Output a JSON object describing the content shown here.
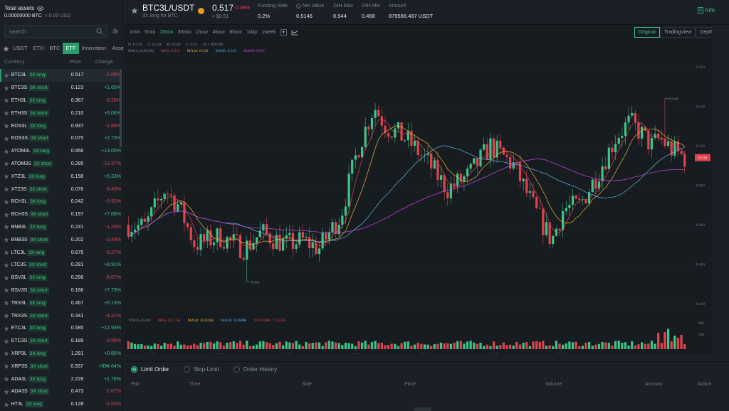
{
  "sidebar": {
    "assets_title": "Total assets",
    "assets_btc": "0.00000000 BTC",
    "assets_usd": "≈ 0.00 USD",
    "search_placeholder": "search",
    "quote_tabs": [
      "USDT",
      "ETH",
      "BTC",
      "ETF",
      "Innovation",
      "Assessment"
    ],
    "active_tab": "ETF",
    "col_currency": "Currency",
    "col_price": "Price",
    "col_change": "Change",
    "rows": [
      {
        "sym": "BTC3L",
        "tag": "3X long",
        "price": "0.517",
        "chg": "-2.08%",
        "dir": "neg"
      },
      {
        "sym": "BTC3S",
        "tag": "3X short",
        "price": "0.123",
        "chg": "+1.65%",
        "dir": "pos"
      },
      {
        "sym": "ETH3L",
        "tag": "3X long",
        "price": "0.367",
        "chg": "-8.28%",
        "dir": "neg"
      },
      {
        "sym": "ETH3S",
        "tag": "3X short",
        "price": "0.210",
        "chg": "+6.06%",
        "dir": "pos"
      },
      {
        "sym": "EOS3L",
        "tag": "3X long",
        "price": "0.937",
        "chg": "-1.88%",
        "dir": "neg"
      },
      {
        "sym": "EOS3S",
        "tag": "3X short",
        "price": "0.075",
        "chg": "+2.73%",
        "dir": "pos"
      },
      {
        "sym": "ATOM3L",
        "tag": "3X long",
        "price": "0.956",
        "chg": "+13.00%",
        "dir": "pos"
      },
      {
        "sym": "ATOM3S",
        "tag": "3X short",
        "price": "0.285",
        "chg": "-13.37%",
        "dir": "neg"
      },
      {
        "sym": "XTZ3L",
        "tag": "3X long",
        "price": "0.158",
        "chg": "+5.33%",
        "dir": "pos"
      },
      {
        "sym": "XTZ3S",
        "tag": "3X short",
        "price": "0.076",
        "chg": "-8.43%",
        "dir": "neg"
      },
      {
        "sym": "BCH3L",
        "tag": "3X long",
        "price": "0.242",
        "chg": "-6.92%",
        "dir": "neg"
      },
      {
        "sym": "BCH3S",
        "tag": "3X short",
        "price": "0.197",
        "chg": "+7.06%",
        "dir": "pos"
      },
      {
        "sym": "BNB3L",
        "tag": "3X long",
        "price": "0.231",
        "chg": "-1.28%",
        "dir": "neg"
      },
      {
        "sym": "BNB3S",
        "tag": "3X short",
        "price": "0.202",
        "chg": "-0.49%",
        "dir": "neg"
      },
      {
        "sym": "LTC3L",
        "tag": "3X long",
        "price": "0.675",
        "chg": "-9.27%",
        "dir": "neg"
      },
      {
        "sym": "LTC3S",
        "tag": "3X short",
        "price": "0.281",
        "chg": "+8.91%",
        "dir": "pos"
      },
      {
        "sym": "BSV3L",
        "tag": "3X long",
        "price": "0.296",
        "chg": "-8.07%",
        "dir": "neg"
      },
      {
        "sym": "BSV3S",
        "tag": "3X short",
        "price": "0.166",
        "chg": "+7.79%",
        "dir": "pos"
      },
      {
        "sym": "TRX3L",
        "tag": "3X long",
        "price": "0.467",
        "chg": "+6.13%",
        "dir": "pos"
      },
      {
        "sym": "TRX3S",
        "tag": "3X short",
        "price": "0.341",
        "chg": "-4.21%",
        "dir": "neg"
      },
      {
        "sym": "ETC3L",
        "tag": "3X long",
        "price": "0.585",
        "chg": "+12.93%",
        "dir": "pos"
      },
      {
        "sym": "ETC3S",
        "tag": "3X short",
        "price": "0.189",
        "chg": "-9.56%",
        "dir": "neg"
      },
      {
        "sym": "XRP3L",
        "tag": "3X long",
        "price": "1.291",
        "chg": "+0.85%",
        "dir": "pos"
      },
      {
        "sym": "XRP3S",
        "tag": "3X short",
        "price": "0.557",
        "chg": "+894.64%",
        "dir": "pos"
      },
      {
        "sym": "ADA3L",
        "tag": "3X long",
        "price": "2.226",
        "chg": "+1.78%",
        "dir": "pos"
      },
      {
        "sym": "ADA3S",
        "tag": "3X short",
        "price": "0.473",
        "chg": "-2.07%",
        "dir": "neg"
      },
      {
        "sym": "HT3L",
        "tag": "3X long",
        "price": "0.128",
        "chg": "-1.53%",
        "dir": "neg"
      }
    ]
  },
  "header": {
    "pair": "BTC3L/USDT",
    "subtitle": "3X long for BTC",
    "last_price": "0.517",
    "last_change": "-2.08%",
    "last_usd": "≈ $0.51",
    "stats": [
      {
        "label": "Funding Rate",
        "value": "0.2%"
      },
      {
        "label": "Net Value",
        "value": "0.5146"
      },
      {
        "label": "24H Max",
        "value": "0.544"
      },
      {
        "label": "24H Min",
        "value": "0.468"
      },
      {
        "label": "Amount",
        "value": "879596.487 USDT"
      }
    ],
    "info_label": "Info"
  },
  "chart": {
    "intervals": [
      "1min",
      "5min",
      "15min",
      "30min",
      "1hour",
      "4hour",
      "8hour",
      "1day",
      "1week"
    ],
    "active_interval": "15min",
    "views": [
      "Original",
      "TradingView",
      "Depth"
    ],
    "active_view": "Original",
    "ohlc": [
      "O: 0.516",
      "C: 0.514",
      "H: 0.519",
      "L: 0.51",
      "A: 17832.89"
    ],
    "ma_label": "MA(5,10,30,60)",
    "ma_values": [
      {
        "text": "MA5: 0.516",
        "color": "#e0434d"
      },
      {
        "text": "MA10: 0.519",
        "color": "#f0b43c"
      },
      {
        "text": "MA30: 0.515",
        "color": "#5fb7e0"
      },
      {
        "text": "MA60: 0.507",
        "color": "#c34fd6"
      }
    ],
    "vol_label": "VOL(5,10,20)",
    "vol_values": [
      {
        "text": "MA5: 20.7.5K",
        "color": "#e0434d"
      },
      {
        "text": "MA10: 20.024K",
        "color": "#f0b43c"
      },
      {
        "text": "MA20: 16.868K",
        "color": "#5fb7e0"
      },
      {
        "text": "VOLUME: 17.833K",
        "color": "#e0434d"
      }
    ],
    "y_ticks": [
      "0.560",
      "0.540",
      "0.520",
      "0.500",
      "0.480",
      "0.460",
      "0.440"
    ],
    "vol_ticks": [
      "48K",
      "24K"
    ],
    "x_ticks": [
      "11-23",
      "18:30",
      "11-24",
      "09:30",
      "17:00",
      "11-25",
      "08:00"
    ],
    "current_price_label": "0.514",
    "high_marker": "0.544",
    "low_marker": "0.451"
  },
  "chart_data": {
    "type": "candlestick",
    "ylim": [
      0.435,
      0.565
    ],
    "high": 0.544,
    "low": 0.451,
    "last": 0.514
  },
  "orders": {
    "tabs": [
      "Limit Order",
      "Stop-Limit",
      "Order History"
    ],
    "active_tab": "Limit Order",
    "columns": [
      "Pair",
      "Time",
      "Side",
      "Price",
      "Volume",
      "Amount",
      "Action"
    ]
  },
  "colors": {
    "up": "#3cc48a",
    "down": "#e0434d",
    "accent": "#2a9d6b"
  }
}
